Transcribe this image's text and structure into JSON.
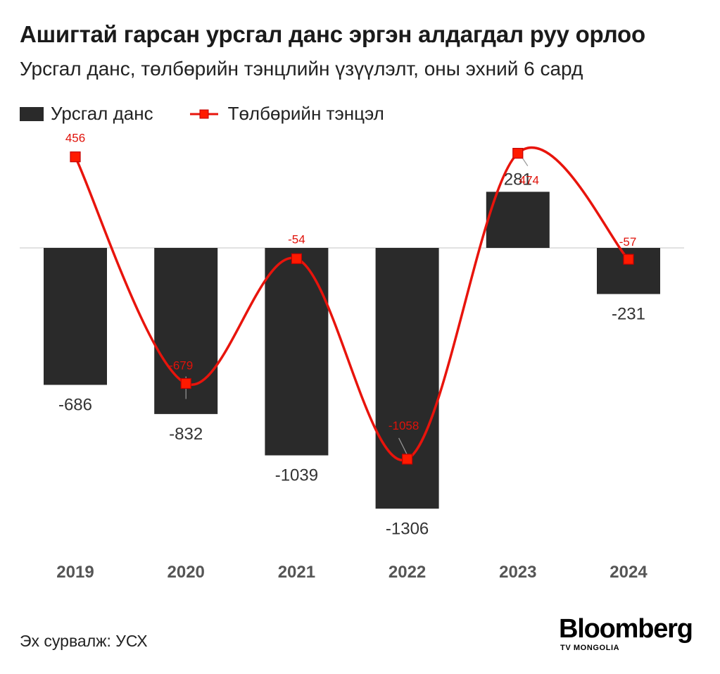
{
  "title": "Ашигтай гарсан урсгал данс эргэн алдагдал руу орлоо",
  "subtitle": "Урсгал данс, төлбөрийн тэнцлийн үзүүлэлт, оны эхний 6 сард",
  "source": "Эх сурвалж: УСХ",
  "logo": {
    "main": "Bloomberg",
    "sub": "TV MONGOLIA"
  },
  "colors": {
    "bar": "#2a2a2a",
    "line": "#e8140c",
    "marker_fill": "#ff1a00",
    "zero_line": "#d9d9d9"
  },
  "chart_data": {
    "type": "bar+line",
    "categories": [
      "2019",
      "2020",
      "2021",
      "2022",
      "2023",
      "2024"
    ],
    "series": [
      {
        "name": "Урсгал данс",
        "type": "bar",
        "values": [
          -686,
          -832,
          -1039,
          -1306,
          281,
          -231
        ]
      },
      {
        "name": "Төлбөрийн тэнцэл",
        "type": "line",
        "values": [
          456,
          -679,
          -54,
          -1058,
          474,
          -57
        ]
      }
    ],
    "legend_position": "top-left",
    "grid": false
  }
}
